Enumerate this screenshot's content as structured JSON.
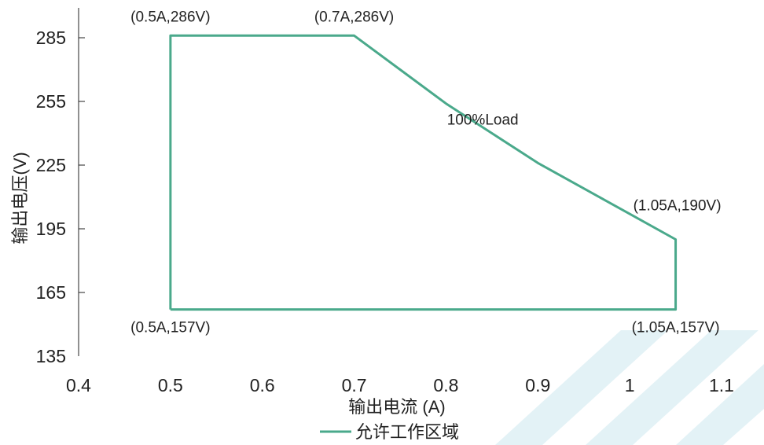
{
  "chart_data": {
    "type": "line",
    "xlabel": "输出电流 (A)",
    "ylabel": "输出电压(V)",
    "xlim": [
      0.4,
      1.1
    ],
    "ylim": [
      135,
      285
    ],
    "xticks": [
      0.4,
      0.5,
      0.6,
      0.7,
      0.8,
      0.9,
      1,
      1.1
    ],
    "yticks": [
      135,
      165,
      195,
      225,
      255,
      285
    ],
    "x_tick_labels": [
      "0.4",
      "0.5",
      "0.6",
      "0.7",
      "0.8",
      "0.9",
      "1",
      "1.1"
    ],
    "y_tick_labels": [
      "135",
      "165",
      "195",
      "225",
      "255",
      "285"
    ],
    "grid": false,
    "legend_position": "bottom-center",
    "series": [
      {
        "name": "允许工作区域",
        "color": "#4aa98b",
        "points": [
          [
            0.5,
            157
          ],
          [
            0.5,
            286
          ],
          [
            0.7,
            286
          ],
          [
            0.75,
            270
          ],
          [
            0.8,
            254
          ],
          [
            0.85,
            240
          ],
          [
            0.9,
            226
          ],
          [
            0.95,
            214
          ],
          [
            1.0,
            202
          ],
          [
            1.05,
            190
          ],
          [
            1.05,
            157
          ],
          [
            0.5,
            157
          ]
        ]
      }
    ],
    "annotations": [
      {
        "text": "(0.5A,286V)",
        "x": 0.5,
        "y": 286
      },
      {
        "text": "(0.7A,286V)",
        "x": 0.7,
        "y": 286
      },
      {
        "text": "(1.05A,190V)",
        "x": 1.05,
        "y": 190
      },
      {
        "text": "(0.5A,157V)",
        "x": 0.5,
        "y": 157
      },
      {
        "text": "(1.05A,157V)",
        "x": 1.05,
        "y": 157
      },
      {
        "text": "100%Load",
        "x": 0.84,
        "y": 244
      }
    ]
  },
  "watermark": {
    "color": "#e3f2f6"
  }
}
